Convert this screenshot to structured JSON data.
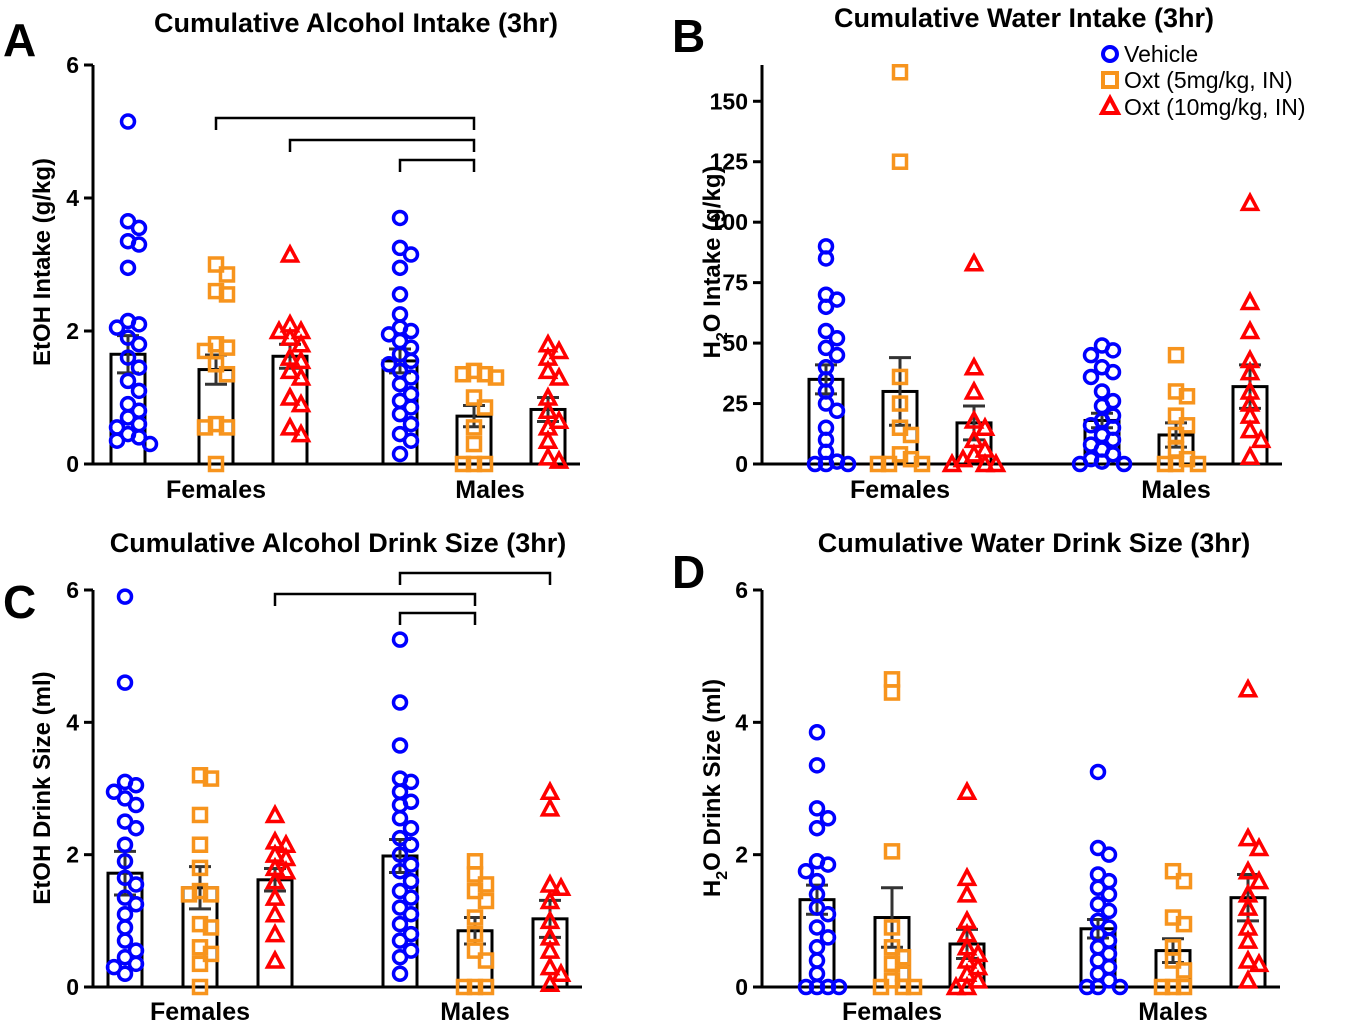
{
  "legend": [
    {
      "label": "Vehicle",
      "marker": "circle",
      "color": "#0000ff"
    },
    {
      "label": "Oxt (5mg/kg, IN)",
      "marker": "square",
      "color": "#f7941d"
    },
    {
      "label": "Oxt (10mg/kg, IN)",
      "marker": "triangle",
      "color": "#ff0000"
    }
  ],
  "chart_data": [
    {
      "panel": "A",
      "type": "bar+scatter",
      "title": "Cumulative Alcohol Intake (3hr)",
      "ylabel": "EtOH Intake (g/kg)",
      "ylabel_sub": "",
      "ylim": [
        0,
        6
      ],
      "yticks": [
        0,
        2,
        4,
        6
      ],
      "groups": [
        "Females",
        "Males"
      ],
      "series": [
        {
          "name": "Vehicle",
          "bars": [
            1.65,
            1.55
          ],
          "sem": [
            0.28,
            0.18
          ],
          "points": [
            [
              5.15,
              3.65,
              3.55,
              3.35,
              3.3,
              2.95,
              2.15,
              2.1,
              2.05,
              1.9,
              1.8,
              1.6,
              1.45,
              1.25,
              1.1,
              0.9,
              0.8,
              0.7,
              0.6,
              0.55,
              0.45,
              0.4,
              0.35,
              0.3
            ],
            [
              3.7,
              3.25,
              3.15,
              2.95,
              2.55,
              2.25,
              2.05,
              2.0,
              1.95,
              1.85,
              1.75,
              1.65,
              1.55,
              1.5,
              1.4,
              1.3,
              1.2,
              1.05,
              0.95,
              0.85,
              0.75,
              0.6,
              0.45,
              0.35,
              0.15
            ]
          ]
        },
        {
          "name": "Oxt (5mg/kg, IN)",
          "bars": [
            1.42,
            0.72
          ],
          "sem": [
            0.22,
            0.16
          ],
          "points": [
            [
              3.0,
              2.85,
              2.6,
              2.55,
              1.8,
              1.75,
              1.7,
              1.5,
              1.35,
              0.6,
              0.55,
              0.55,
              0.0
            ],
            [
              1.4,
              1.35,
              1.35,
              1.3,
              1.0,
              0.85,
              0.55,
              0.3,
              0.0,
              0.0,
              0.0
            ]
          ]
        },
        {
          "name": "Oxt (10mg/kg, IN)",
          "bars": [
            1.62,
            0.82
          ],
          "sem": [
            0.18,
            0.18
          ],
          "points": [
            [
              3.15,
              2.1,
              2.0,
              2.0,
              1.9,
              1.8,
              1.6,
              1.55,
              1.4,
              1.3,
              1.0,
              0.9,
              0.55,
              0.45
            ],
            [
              1.8,
              1.7,
              1.6,
              1.4,
              1.3,
              1.0,
              0.8,
              0.65,
              0.55,
              0.35,
              0.1,
              0.05
            ]
          ]
        }
      ],
      "significance": [
        [
          "Females|Oxt (5mg/kg, IN)",
          "Males|Oxt (5mg/kg, IN)"
        ],
        [
          "Females|Oxt (10mg/kg, IN)",
          "Males|Oxt (5mg/kg, IN)"
        ],
        [
          "Males|Vehicle",
          "Males|Oxt (5mg/kg, IN)"
        ]
      ]
    },
    {
      "panel": "B",
      "type": "bar+scatter",
      "title": "Cumulative Water Intake (3hr)",
      "ylabel": "H O Intake (g/kg)",
      "ylabel_sub": "2",
      "ylim": [
        0,
        165
      ],
      "yticks": [
        0,
        25,
        50,
        75,
        100,
        125,
        150
      ],
      "groups": [
        "Females",
        "Males"
      ],
      "series": [
        {
          "name": "Vehicle",
          "bars": [
            35,
            18
          ],
          "sem": [
            6,
            3
          ],
          "points": [
            [
              90,
              85,
              70,
              68,
              65,
              55,
              52,
              48,
              45,
              40,
              35,
              30,
              25,
              22,
              15,
              10,
              5,
              1,
              0,
              0,
              0
            ],
            [
              49,
              47,
              45,
              40,
              38,
              36,
              30,
              26,
              24,
              20,
              18,
              16,
              15,
              12,
              10,
              8,
              6,
              4,
              2,
              1,
              0,
              0
            ]
          ]
        },
        {
          "name": "Oxt (5mg/kg, IN)",
          "bars": [
            30,
            12
          ],
          "sem": [
            14,
            5
          ],
          "points": [
            [
              162,
              125,
              36,
              25,
              15,
              12,
              4,
              2,
              0,
              0,
              0
            ],
            [
              45,
              30,
              28,
              20,
              16,
              12,
              6,
              2,
              0,
              0,
              0
            ]
          ]
        },
        {
          "name": "Oxt (10mg/kg, IN)",
          "bars": [
            17,
            32
          ],
          "sem": [
            7,
            9
          ],
          "points": [
            [
              83,
              40,
              30,
              18,
              15,
              10,
              6,
              4,
              2,
              0,
              0,
              0
            ],
            [
              108,
              67,
              55,
              43,
              38,
              30,
              25,
              20,
              14,
              10,
              3
            ]
          ]
        }
      ],
      "significance": []
    },
    {
      "panel": "C",
      "type": "bar+scatter",
      "title": "Cumulative Alcohol Drink Size (3hr)",
      "ylabel": "EtOH Drink Size (ml)",
      "ylabel_sub": "",
      "ylim": [
        0,
        6
      ],
      "yticks": [
        0,
        2,
        4,
        6
      ],
      "groups": [
        "Females",
        "Males"
      ],
      "series": [
        {
          "name": "Vehicle",
          "bars": [
            1.72,
            1.98
          ],
          "sem": [
            0.33,
            0.25
          ],
          "points": [
            [
              5.9,
              4.6,
              3.1,
              3.05,
              2.95,
              2.85,
              2.75,
              2.5,
              2.4,
              2.15,
              1.9,
              1.65,
              1.55,
              1.35,
              1.25,
              1.1,
              0.9,
              0.7,
              0.55,
              0.45,
              0.35,
              0.3,
              0.2
            ],
            [
              5.25,
              4.3,
              3.65,
              3.15,
              3.1,
              2.95,
              2.8,
              2.75,
              2.55,
              2.4,
              2.25,
              2.15,
              2.0,
              1.85,
              1.75,
              1.6,
              1.45,
              1.35,
              1.2,
              1.1,
              0.95,
              0.8,
              0.7,
              0.55,
              0.45,
              0.2
            ]
          ]
        },
        {
          "name": "Oxt (5mg/kg, IN)",
          "bars": [
            1.5,
            0.85
          ],
          "sem": [
            0.32,
            0.2
          ],
          "points": [
            [
              3.2,
              3.15,
              2.6,
              2.15,
              1.8,
              1.45,
              1.4,
              1.4,
              0.95,
              0.9,
              0.6,
              0.5,
              0.35,
              0.0
            ],
            [
              1.9,
              1.7,
              1.55,
              1.45,
              1.3,
              1.05,
              0.8,
              0.55,
              0.4,
              0.0,
              0.0,
              0.0
            ]
          ]
        },
        {
          "name": "Oxt (10mg/kg, IN)",
          "bars": [
            1.62,
            1.03
          ],
          "sem": [
            0.17,
            0.28
          ],
          "points": [
            [
              2.6,
              2.2,
              2.15,
              2.0,
              1.95,
              1.8,
              1.75,
              1.6,
              1.35,
              1.1,
              0.8,
              0.4
            ],
            [
              2.95,
              2.7,
              1.55,
              1.5,
              1.3,
              1.0,
              0.75,
              0.55,
              0.3,
              0.2,
              0.05
            ]
          ]
        }
      ],
      "significance": [
        [
          "Females|Oxt (10mg/kg, IN)",
          "Males|Oxt (5mg/kg, IN)"
        ],
        [
          "Males|Vehicle",
          "Males|Oxt (10mg/kg, IN)"
        ],
        [
          "Males|Vehicle",
          "Males|Oxt (5mg/kg, IN)"
        ]
      ]
    },
    {
      "panel": "D",
      "type": "bar+scatter",
      "title": "Cumulative Water Drink Size (3hr)",
      "ylabel": "H O Drink Size (ml)",
      "ylabel_sub": "2",
      "ylim": [
        0,
        6
      ],
      "yticks": [
        0,
        2,
        4,
        6
      ],
      "groups": [
        "Females",
        "Males"
      ],
      "series": [
        {
          "name": "Vehicle",
          "bars": [
            1.32,
            0.88
          ],
          "sem": [
            0.22,
            0.14
          ],
          "points": [
            [
              3.85,
              3.35,
              2.7,
              2.55,
              2.4,
              1.9,
              1.85,
              1.75,
              1.6,
              1.4,
              1.2,
              1.1,
              0.9,
              0.75,
              0.6,
              0.4,
              0.2,
              0.0,
              0.0,
              0.0,
              0.0
            ],
            [
              3.25,
              2.1,
              2.0,
              1.7,
              1.6,
              1.5,
              1.4,
              1.25,
              1.15,
              1.0,
              0.9,
              0.8,
              0.7,
              0.6,
              0.5,
              0.4,
              0.3,
              0.2,
              0.1,
              0.0,
              0.0,
              0.0
            ]
          ]
        },
        {
          "name": "Oxt (5mg/kg, IN)",
          "bars": [
            1.05,
            0.55
          ],
          "sem": [
            0.45,
            0.18
          ],
          "points": [
            [
              4.65,
              4.45,
              2.05,
              0.9,
              0.6,
              0.45,
              0.35,
              0.2,
              0.1,
              0.0,
              0.0,
              0.0
            ],
            [
              1.75,
              1.6,
              1.05,
              0.95,
              0.6,
              0.4,
              0.25,
              0.0,
              0.0,
              0.0
            ]
          ]
        },
        {
          "name": "Oxt (10mg/kg, IN)",
          "bars": [
            0.65,
            1.35
          ],
          "sem": [
            0.22,
            0.35
          ],
          "points": [
            [
              2.95,
              1.65,
              1.4,
              1.0,
              0.8,
              0.6,
              0.5,
              0.4,
              0.3,
              0.2,
              0.1,
              0.0,
              0.0
            ],
            [
              4.5,
              2.25,
              2.1,
              1.75,
              1.6,
              1.4,
              1.2,
              0.9,
              0.7,
              0.4,
              0.35,
              0.1
            ]
          ]
        }
      ],
      "significance": []
    }
  ]
}
